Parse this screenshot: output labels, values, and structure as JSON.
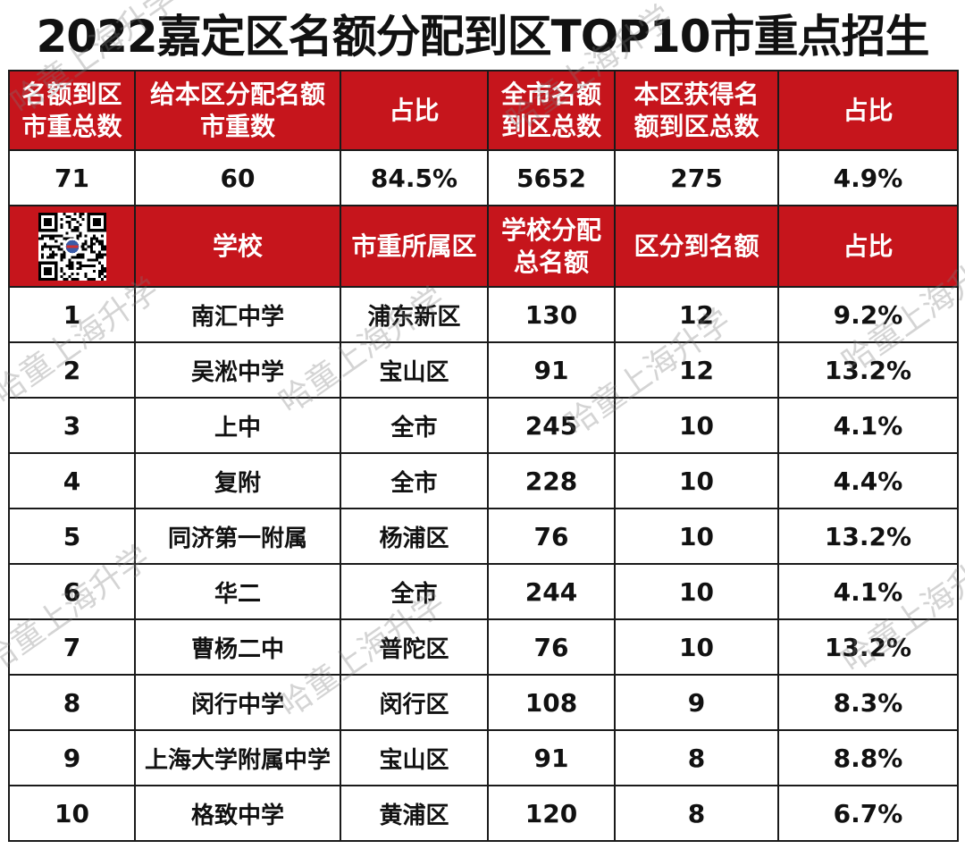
{
  "title": "2022嘉定区名额分配到区TOP10市重点招生",
  "header1": [
    "名额到区\n市重总数",
    "给本区分配名额\n市重数",
    "占比",
    "全市名额\n到区总数",
    "本区获得名\n额到区总数",
    "占比"
  ],
  "summary": [
    "71",
    "60",
    "84.5%",
    "5652",
    "275",
    "4.9%"
  ],
  "header2": [
    "",
    "学校",
    "市重所属区",
    "学校分配\n总名额",
    "区分到名额",
    "占比"
  ],
  "rows": [
    {
      "rank": "1",
      "school": "南汇中学",
      "district": "浦东新区",
      "total": "130",
      "allocated": "12",
      "ratio": "9.2%"
    },
    {
      "rank": "2",
      "school": "吴淞中学",
      "district": "宝山区",
      "total": "91",
      "allocated": "12",
      "ratio": "13.2%"
    },
    {
      "rank": "3",
      "school": "上中",
      "district": "全市",
      "total": "245",
      "allocated": "10",
      "ratio": "4.1%"
    },
    {
      "rank": "4",
      "school": "复附",
      "district": "全市",
      "total": "228",
      "allocated": "10",
      "ratio": "4.4%"
    },
    {
      "rank": "5",
      "school": "同济第一附属",
      "district": "杨浦区",
      "total": "76",
      "allocated": "10",
      "ratio": "13.2%"
    },
    {
      "rank": "6",
      "school": "华二",
      "district": "全市",
      "total": "244",
      "allocated": "10",
      "ratio": "4.1%"
    },
    {
      "rank": "7",
      "school": "曹杨二中",
      "district": "普陀区",
      "total": "76",
      "allocated": "10",
      "ratio": "13.2%"
    },
    {
      "rank": "8",
      "school": "闵行中学",
      "district": "闵行区",
      "total": "108",
      "allocated": "9",
      "ratio": "8.3%"
    },
    {
      "rank": "9",
      "school": "上海大学附属中学",
      "district": "宝山区",
      "total": "91",
      "allocated": "8",
      "ratio": "8.8%"
    },
    {
      "rank": "10",
      "school": "格致中学",
      "district": "黄浦区",
      "total": "120",
      "allocated": "8",
      "ratio": "6.7%"
    }
  ],
  "qr_code": "qr-code-icon",
  "watermarks": [
    "哈童上海升学",
    "哈童上海升学",
    "哈童上海升学",
    "哈童上海升学",
    "哈童上海升学",
    "哈童上海升学",
    "哈童上海升学",
    "哈童上海升学",
    "哈童上海升学"
  ],
  "colors": {
    "header_bg": "#c6151c",
    "header_text": "#ffffff",
    "body_text": "#111111",
    "border": "#1a1a1a"
  }
}
